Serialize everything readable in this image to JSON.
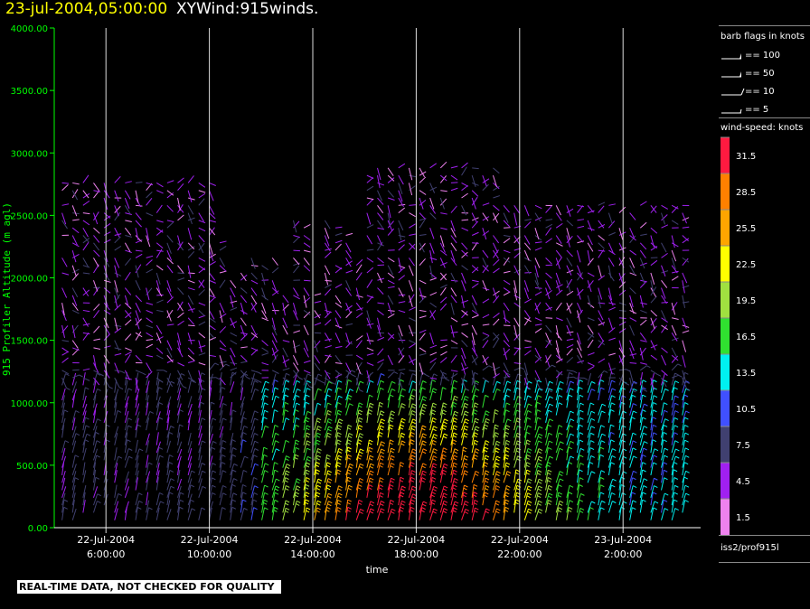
{
  "title": {
    "datetime": "23-jul-2004,05:00:00",
    "product": "XYWind:915winds."
  },
  "notice": "REAL-TIME DATA, NOT CHECKED FOR QUALITY",
  "source_label": "iss2/prof915l",
  "barb_legend": {
    "title": "barb flags in knots",
    "items": [
      {
        "label": "== 100",
        "speed": 100
      },
      {
        "label": "== 50",
        "speed": 50
      },
      {
        "label": "== 10",
        "speed": 10
      },
      {
        "label": "== 5",
        "speed": 5
      }
    ]
  },
  "colorbar": {
    "title": "wind-speed: knots",
    "levels": [
      {
        "label": "31.5",
        "color": "#ff1a40"
      },
      {
        "label": "28.5",
        "color": "#ff8000"
      },
      {
        "label": "25.5",
        "color": "#ffa500"
      },
      {
        "label": "22.5",
        "color": "#ffff00"
      },
      {
        "label": "19.5",
        "color": "#a0e040"
      },
      {
        "label": "16.5",
        "color": "#30e030"
      },
      {
        "label": "13.5",
        "color": "#00f0f0"
      },
      {
        "label": "10.5",
        "color": "#4050ff"
      },
      {
        "label": "7.5",
        "color": "#404070"
      },
      {
        "label": "4.5",
        "color": "#a020f0"
      },
      {
        "label": "1.5",
        "color": "#ee82ee"
      }
    ]
  },
  "chart_data": {
    "type": "wind-barb time-height",
    "ylabel": "915 Profiler Altitude (m agl)",
    "xlabel": "time",
    "ylim": [
      0,
      4000
    ],
    "yticks": [
      "0.00",
      "500.00",
      "1000.00",
      "1500.00",
      "2000.00",
      "2500.00",
      "3000.00",
      "3500.00",
      "4000.00"
    ],
    "xlim": [
      "22-Jul-2004 04:00:00",
      "23-Jul-2004 05:00:00"
    ],
    "xticks": [
      {
        "date": "22-Jul-2004",
        "time": "6:00:00",
        "hour": 6
      },
      {
        "date": "22-Jul-2004",
        "time": "10:00:00",
        "hour": 10
      },
      {
        "date": "22-Jul-2004",
        "time": "14:00:00",
        "hour": 14
      },
      {
        "date": "22-Jul-2004",
        "time": "18:00:00",
        "hour": 18
      },
      {
        "date": "22-Jul-2004",
        "time": "22:00:00",
        "hour": 22
      },
      {
        "date": "23-Jul-2004",
        "time": "2:00:00",
        "hour": 26
      }
    ],
    "grid": "vertical at x ticks",
    "axis_color": "#00ff00"
  }
}
